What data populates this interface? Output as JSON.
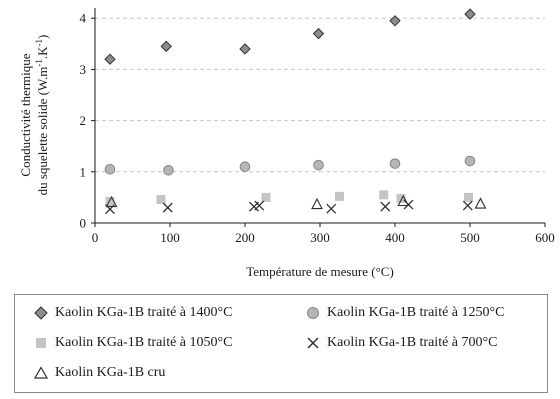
{
  "chart_data": {
    "type": "scatter",
    "xlabel": "Température de mesure (°C)",
    "ylabel_line1": "Conductivité thermique",
    "ylabel_line2": "du squelette solide (W.m",
    "ylabel_sup1": "-1",
    "ylabel_mid": ".K",
    "ylabel_sup2": "-1",
    "ylabel_end": ")",
    "xlim": [
      0,
      600
    ],
    "ylim": [
      0,
      4.2
    ],
    "x_ticks": [
      0,
      100,
      200,
      300,
      400,
      500,
      600
    ],
    "y_ticks": [
      0,
      1,
      2,
      3,
      4
    ],
    "grid": "horizontal dashed",
    "legend_position": "bottom",
    "series": [
      {
        "name": "Kaolin KGa-1B traité à 1400°C",
        "marker": "diamond",
        "color": "#8c8c8c",
        "x": [
          20,
          95,
          200,
          298,
          400,
          500
        ],
        "y": [
          3.2,
          3.45,
          3.4,
          3.7,
          3.95,
          4.08
        ]
      },
      {
        "name": "Kaolin KGa-1B traité à 1250°C",
        "marker": "circle",
        "color": "#b5b5b5",
        "x": [
          20,
          98,
          200,
          298,
          400,
          500
        ],
        "y": [
          1.05,
          1.03,
          1.1,
          1.13,
          1.16,
          1.21
        ]
      },
      {
        "name": "Kaolin KGa-1B traité à 1050°C",
        "marker": "square",
        "color": "#c4c4c4",
        "x": [
          20,
          88,
          228,
          326,
          385,
          408,
          498
        ],
        "y": [
          0.42,
          0.46,
          0.5,
          0.52,
          0.55,
          0.48,
          0.5
        ]
      },
      {
        "name": "Kaolin KGa-1B traité à 700°C",
        "marker": "cross",
        "color": "#303030",
        "x": [
          20,
          97,
          212,
          219,
          315,
          387,
          418,
          497
        ],
        "y": [
          0.27,
          0.3,
          0.32,
          0.34,
          0.28,
          0.32,
          0.36,
          0.34
        ]
      },
      {
        "name": "Kaolin KGa-1B cru",
        "marker": "triangle",
        "color": "#303030",
        "x": [
          22,
          296,
          411,
          514
        ],
        "y": [
          0.4,
          0.36,
          0.42,
          0.37
        ]
      }
    ]
  }
}
